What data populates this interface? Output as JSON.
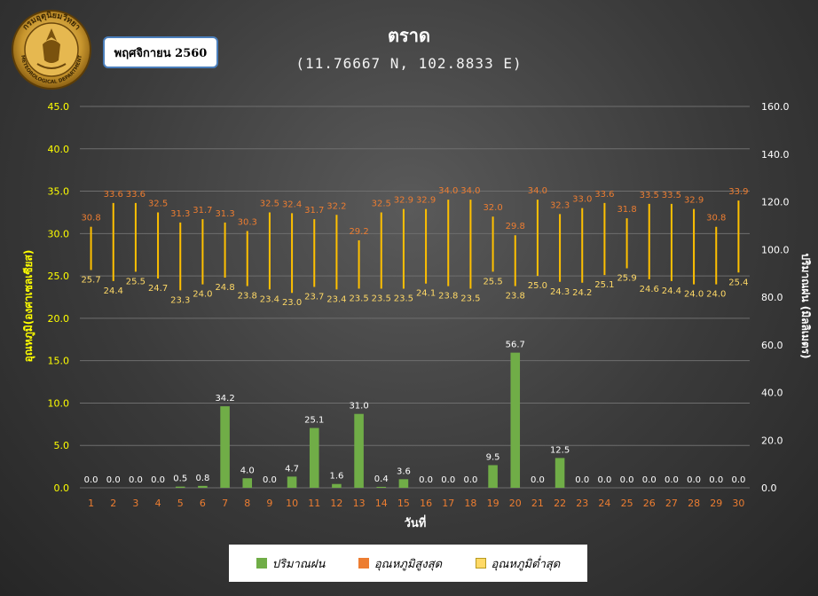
{
  "header": {
    "title": "ตราด",
    "subtitle": "(11.76667 N, 102.8833 E)",
    "month_label": "พฤศจิกายน 2560",
    "logo_text_top": "กรมอุตุนิยมวิทยา",
    "logo_text_bottom": "METEOROLOGICAL DEPARTMENT"
  },
  "legend": {
    "rain": "ปริมาณฝน",
    "tmax": "อุณหภูมิสูงสุด",
    "tmin": "อุณหภูมิต่ำสุด"
  },
  "colors": {
    "rain": "#70ad47",
    "tmax_label": "#ed7d31",
    "tmin_label": "#ffd966",
    "range_line": "#ffc000",
    "axis_text_left": "#ffff00",
    "axis_text_right": "#ffffff",
    "x_tick": "#ed7d31"
  },
  "chart_data": {
    "type": "bar",
    "xlabel": "วันที่",
    "ylabel_left": "อุณหภูมิ(องศาเซลเซียส)",
    "ylabel_right": "ปริมาณฝน (มิลลิเมตร)",
    "ylim_left": [
      0,
      45
    ],
    "ylim_right": [
      0,
      160
    ],
    "yticks_left": [
      "0.0",
      "5.0",
      "10.0",
      "15.0",
      "20.0",
      "25.0",
      "30.0",
      "35.0",
      "40.0",
      "45.0"
    ],
    "yticks_right": [
      "0.0",
      "20.0",
      "40.0",
      "60.0",
      "80.0",
      "100.0",
      "120.0",
      "140.0",
      "160.0"
    ],
    "categories": [
      "1",
      "2",
      "3",
      "4",
      "5",
      "6",
      "7",
      "8",
      "9",
      "10",
      "11",
      "12",
      "13",
      "14",
      "15",
      "16",
      "17",
      "18",
      "19",
      "20",
      "21",
      "22",
      "23",
      "24",
      "25",
      "26",
      "27",
      "28",
      "29",
      "30"
    ],
    "series": [
      {
        "name": "ปริมาณฝน",
        "axis": "right",
        "values": [
          0.0,
          0.0,
          0.0,
          0.0,
          0.5,
          0.8,
          34.2,
          4.0,
          0.0,
          4.7,
          25.1,
          1.6,
          31.0,
          0.4,
          3.6,
          0.0,
          0.0,
          0.0,
          9.5,
          56.7,
          0.0,
          12.5,
          0.0,
          0.0,
          0.0,
          0.0,
          0.0,
          0.0,
          0.0,
          0.0
        ]
      },
      {
        "name": "อุณหภูมิสูงสุด",
        "axis": "left",
        "values": [
          30.8,
          33.6,
          33.6,
          32.5,
          31.3,
          31.7,
          31.3,
          30.3,
          32.5,
          32.4,
          31.7,
          32.2,
          29.2,
          32.5,
          32.9,
          32.9,
          34.0,
          34.0,
          32.0,
          29.8,
          34.0,
          32.3,
          33.0,
          33.6,
          31.8,
          33.5,
          33.5,
          32.9,
          30.8,
          33.9
        ]
      },
      {
        "name": "อุณหภูมิต่ำสุด",
        "axis": "left",
        "values": [
          25.7,
          24.4,
          25.5,
          24.7,
          23.3,
          24.0,
          24.8,
          23.8,
          23.4,
          23.0,
          23.7,
          23.4,
          23.5,
          23.5,
          23.5,
          24.1,
          23.8,
          23.5,
          25.5,
          23.8,
          25.0,
          24.3,
          24.2,
          25.1,
          25.9,
          24.6,
          24.4,
          24.0,
          24.0,
          25.4
        ]
      }
    ]
  }
}
